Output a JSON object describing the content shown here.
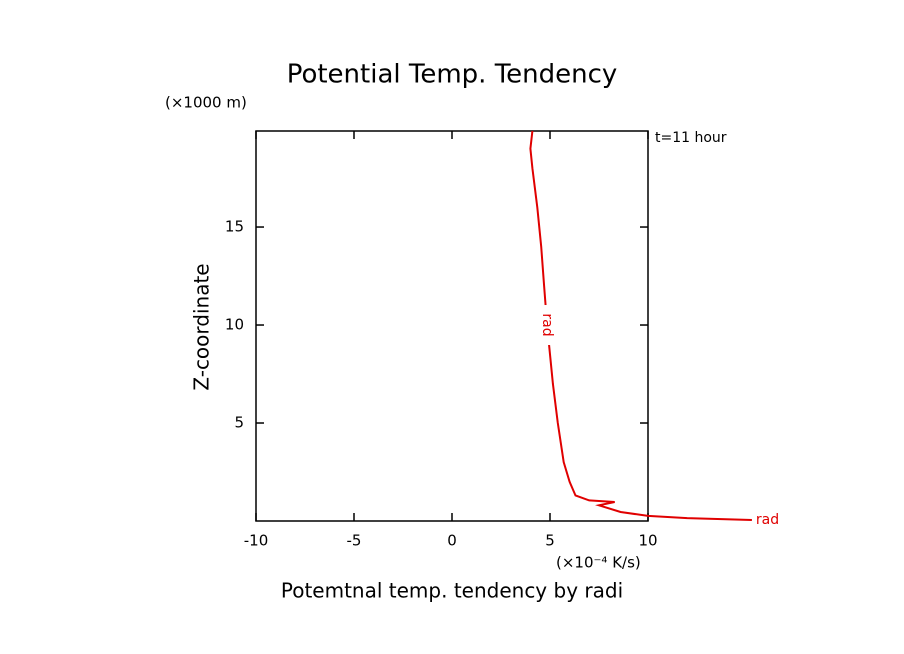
{
  "chart_data": {
    "type": "line",
    "title": "Potential Temp. Tendency",
    "y_unit": "(×1000 m)",
    "annotation": "t=11 hour",
    "x_unit": "(×10⁻⁴ K/s)",
    "xlabel": "Potemtnal temp. tendency by radi",
    "ylabel": "Z-coordinate",
    "xlim": [
      -10,
      10
    ],
    "ylim": [
      0,
      19.9
    ],
    "xticks": [
      -10,
      -5,
      0,
      5,
      10
    ],
    "yticks": [
      5,
      10,
      15
    ],
    "series": [
      {
        "name": "rad",
        "color": "#e00000",
        "x": [
          15.3,
          12,
          10,
          8.6,
          7.5,
          8.3,
          7.0,
          6.3,
          6.0,
          5.7,
          5.4,
          5.15,
          4.85,
          4.7,
          4.55,
          4.35,
          4.1,
          4.0,
          4.1
        ],
        "values": [
          0.05,
          0.15,
          0.26,
          0.46,
          0.8,
          0.97,
          1.05,
          1.3,
          2.0,
          3.0,
          5,
          7,
          10,
          12,
          14,
          16,
          18,
          19,
          19.9
        ]
      }
    ]
  }
}
